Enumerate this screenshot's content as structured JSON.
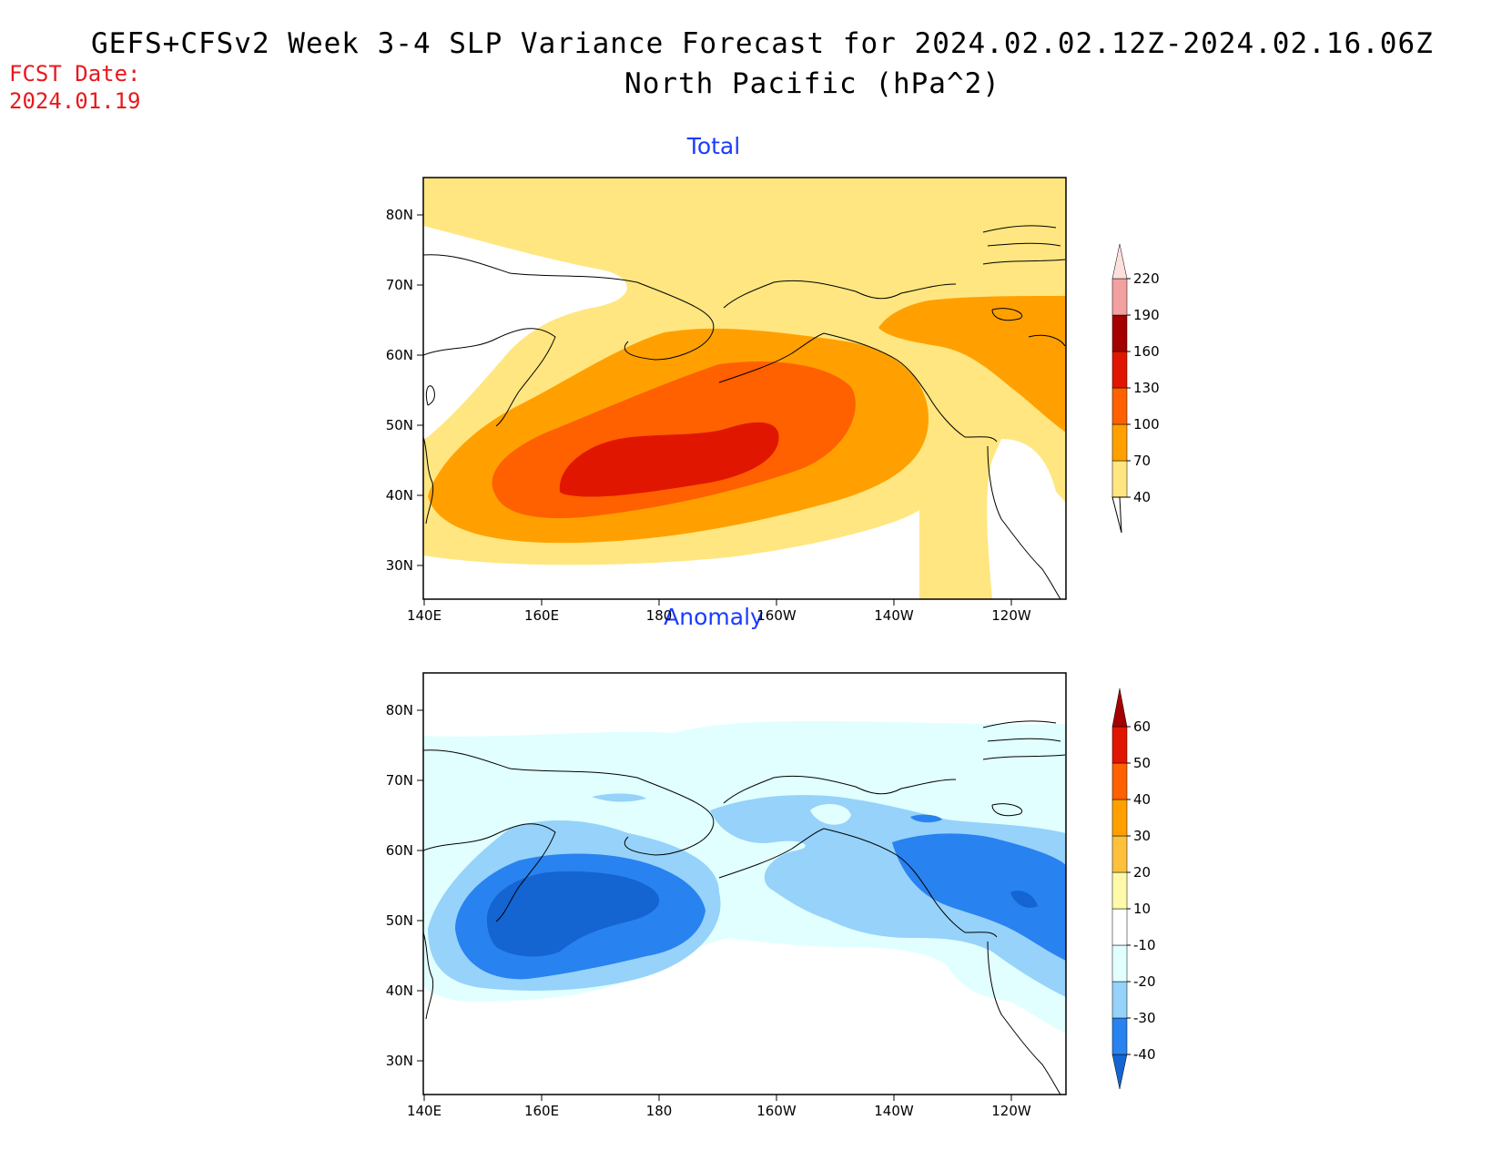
{
  "header": {
    "title_line1": "GEFS+CFSv2 Week 3-4 SLP Variance Forecast for 2024.02.02.12Z-2024.02.16.06Z",
    "title_line2": "North Pacific (hPa^2)",
    "fcst_label": "FCST Date:",
    "fcst_date": "2024.01.19"
  },
  "axes": {
    "lat_ticks": [
      "80N",
      "70N",
      "60N",
      "50N",
      "40N",
      "30N"
    ],
    "lon_ticks": [
      "140E",
      "160E",
      "180",
      "160W",
      "140W",
      "120W"
    ]
  },
  "panels": [
    {
      "title": "Total",
      "colorbar": {
        "labels": [
          "40",
          "70",
          "100",
          "130",
          "160",
          "190",
          "220"
        ],
        "colors": [
          "#ffe680",
          "#ffa000",
          "#ff6000",
          "#e11600",
          "#a50000",
          "#f2a0a0",
          "#fde0dc"
        ]
      }
    },
    {
      "title": "Anomaly",
      "colorbar": {
        "labels": [
          "-40",
          "-30",
          "-20",
          "-10",
          "10",
          "20",
          "30",
          "40",
          "50",
          "60"
        ],
        "colors": [
          "#1464d2",
          "#2882f0",
          "#96d2fa",
          "#e1ffff",
          "#ffffff",
          "#fffaaa",
          "#ffc03c",
          "#ffa000",
          "#ff6000",
          "#e11600",
          "#a50000"
        ]
      }
    }
  ]
}
